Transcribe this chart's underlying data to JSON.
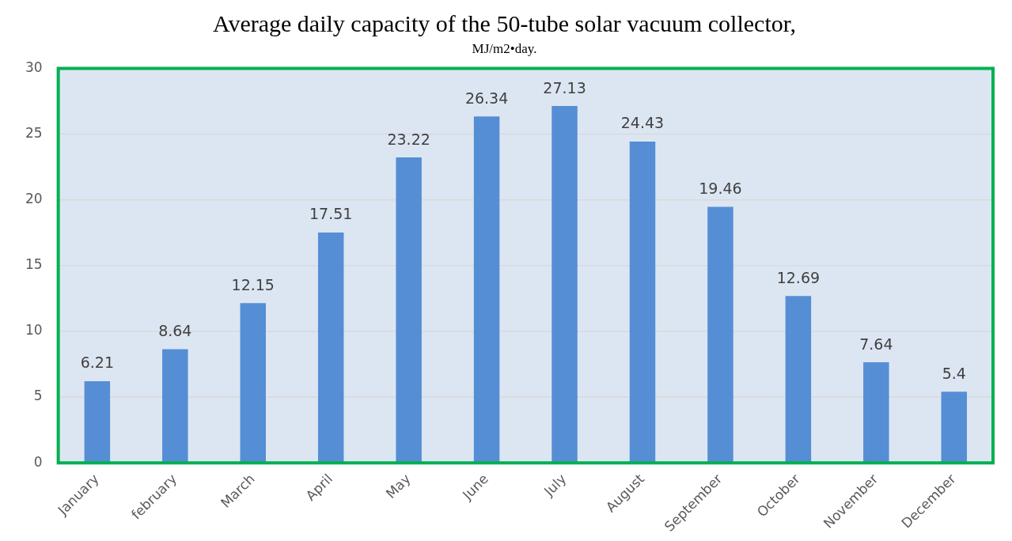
{
  "chart_data": {
    "type": "bar",
    "title": "Average daily capacity of the 50-tube solar vacuum collector,",
    "subtitle": "MJ/m2•day.",
    "categories": [
      "January",
      "february",
      "March",
      "April",
      "May",
      "June",
      "July",
      "August",
      "September",
      "October",
      "November",
      "December"
    ],
    "values": [
      6.21,
      8.64,
      12.15,
      17.51,
      23.22,
      26.34,
      27.13,
      24.43,
      19.46,
      12.69,
      7.64,
      5.4
    ],
    "color": "#558ed5",
    "ylim": [
      0,
      30
    ],
    "yticks": [
      0,
      5,
      10,
      15,
      20,
      25,
      30
    ],
    "grid": "y",
    "data_labels": true,
    "legend": false
  }
}
